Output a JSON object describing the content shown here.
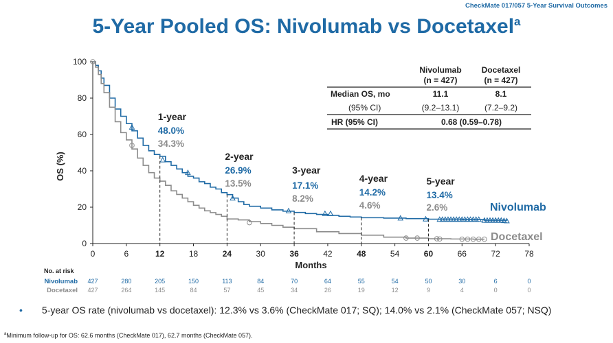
{
  "header_tag": "CheckMate 017/057 5-Year Survival Outcomes",
  "title": "5-Year Pooled OS: Nivolumab vs Docetaxel",
  "title_sup": "a",
  "bullet_text": "5-year OS rate (nivolumab vs docetaxel): 12.3% vs 3.6% (CheckMate 017; SQ); 14.0% vs 2.1% (CheckMate 057; NSQ)",
  "footnote_sup": "a",
  "footnote_text": "Minimum follow-up for OS: 62.6 months (CheckMate 017), 62.7 months (CheckMate 057).",
  "colors": {
    "nivolumab": "#1f6aa5",
    "docetaxel": "#8c8c8c",
    "text": "#222222"
  },
  "summary_table": {
    "headers": [
      [
        "Nivolumab",
        "(n = 427)"
      ],
      [
        "Docetaxel",
        "(n = 427)"
      ]
    ],
    "rows": [
      {
        "label": "Median OS, mo",
        "niv": "11.1",
        "doc": "8.1"
      },
      {
        "label": "(95% CI)",
        "niv": "(9.2–13.1)",
        "doc": "(7.2–9.2)"
      }
    ],
    "hr_label": "HR (95% CI)",
    "hr_value": "0.68 (0.59–0.78)"
  },
  "landmarks": [
    {
      "label": "1-year",
      "niv": "48.0%",
      "doc": "34.3%"
    },
    {
      "label": "2-year",
      "niv": "26.9%",
      "doc": "13.5%"
    },
    {
      "label": "3-year",
      "niv": "17.1%",
      "doc": "8.2%"
    },
    {
      "label": "4-year",
      "niv": "14.2%",
      "doc": "4.6%"
    },
    {
      "label": "5-year",
      "niv": "13.4%",
      "doc": "2.6%"
    }
  ],
  "risk_table": {
    "title": "No. at risk",
    "rows": [
      {
        "name": "Nivolumab",
        "values": [
          "427",
          "280",
          "205",
          "150",
          "113",
          "84",
          "70",
          "64",
          "55",
          "54",
          "50",
          "30",
          "6",
          "0"
        ]
      },
      {
        "name": "Docetaxel",
        "values": [
          "427",
          "264",
          "145",
          "84",
          "57",
          "45",
          "34",
          "26",
          "19",
          "12",
          "9",
          "4",
          "0",
          "0"
        ]
      }
    ]
  },
  "chart_data": {
    "type": "line",
    "xlabel": "Months",
    "ylabel": "OS (%)",
    "xlim": [
      0,
      78
    ],
    "ylim": [
      0,
      100
    ],
    "xticks": [
      0,
      6,
      12,
      18,
      24,
      30,
      36,
      42,
      48,
      54,
      60,
      66,
      72,
      78
    ],
    "xticks_bold": [
      12,
      24,
      36,
      48,
      60
    ],
    "yticks": [
      0,
      20,
      40,
      60,
      80,
      100
    ],
    "landmark_months": [
      12,
      24,
      36,
      48,
      60
    ],
    "series": [
      {
        "name": "Nivolumab",
        "x": [
          0,
          0.5,
          1,
          1.5,
          2,
          3,
          4,
          5,
          6,
          7,
          8,
          9,
          10,
          11,
          12,
          13,
          14,
          15,
          16,
          17,
          18,
          19,
          20,
          21,
          22,
          23,
          24,
          25,
          26,
          27,
          28,
          30,
          32,
          34,
          36,
          38,
          40,
          42,
          44,
          46,
          48,
          52,
          56,
          60,
          66,
          70,
          74
        ],
        "y": [
          100,
          98,
          95,
          91,
          87,
          80,
          74,
          70,
          66,
          62,
          58,
          54,
          51,
          49,
          48,
          45,
          43,
          41,
          39,
          37,
          36,
          34,
          33,
          31,
          30,
          28,
          26.9,
          25,
          23,
          21.5,
          20.5,
          19.5,
          18.5,
          17.8,
          17.1,
          16.5,
          16,
          15.5,
          15,
          14.6,
          14.2,
          14,
          13.7,
          13.4,
          13.2,
          12.8,
          12.5
        ],
        "censor_x": [
          7,
          12.5,
          17,
          25,
          35,
          41.5,
          42.5,
          55,
          59.5,
          62,
          62.5,
          63,
          63.5,
          64,
          64.5,
          65,
          65.5,
          66,
          66.5,
          67,
          67.5,
          68,
          68.5,
          69,
          70,
          70.5,
          71,
          71.5,
          72,
          72.5,
          73,
          73.5,
          74
        ],
        "censor_y": [
          64,
          46,
          39,
          25,
          18,
          16.5,
          16.5,
          14,
          13.5,
          13.3,
          13.3,
          13.3,
          13.3,
          13.3,
          13.3,
          13.3,
          13.3,
          13.3,
          13.3,
          13.3,
          13.3,
          13.3,
          13.3,
          13.3,
          12.8,
          12.8,
          12.8,
          12.8,
          12.8,
          12.8,
          12.8,
          12.6,
          12.5
        ]
      },
      {
        "name": "Docetaxel",
        "x": [
          0,
          0.5,
          1,
          1.5,
          2,
          3,
          4,
          5,
          6,
          7,
          8,
          9,
          10,
          11,
          12,
          13,
          14,
          15,
          16,
          17,
          18,
          19,
          20,
          21,
          22,
          23,
          24,
          26,
          28,
          30,
          32,
          34,
          36,
          40,
          44,
          48,
          52,
          56,
          60,
          64,
          68,
          70
        ],
        "y": [
          100,
          97,
          93,
          88,
          83,
          75,
          67,
          61,
          57,
          52,
          47,
          43,
          39,
          36,
          34.3,
          32,
          29,
          27,
          25,
          23,
          21,
          19.5,
          18,
          17,
          16,
          15,
          13.5,
          13,
          12,
          11,
          10,
          9,
          8.2,
          6.5,
          5.5,
          4.6,
          3.5,
          3,
          2.6,
          2.5,
          2.4,
          2.4
        ],
        "censor_x": [
          0,
          7,
          28,
          56,
          58,
          61.5,
          62,
          66,
          67,
          68,
          69,
          70
        ],
        "censor_y": [
          100,
          54,
          11.5,
          3,
          3,
          2.6,
          2.5,
          2.4,
          2.4,
          2.4,
          2.4,
          2.4
        ]
      }
    ],
    "end_labels": [
      {
        "series": "Nivolumab",
        "text": "Nivolumab"
      },
      {
        "series": "Docetaxel",
        "text": "Docetaxel"
      }
    ]
  }
}
